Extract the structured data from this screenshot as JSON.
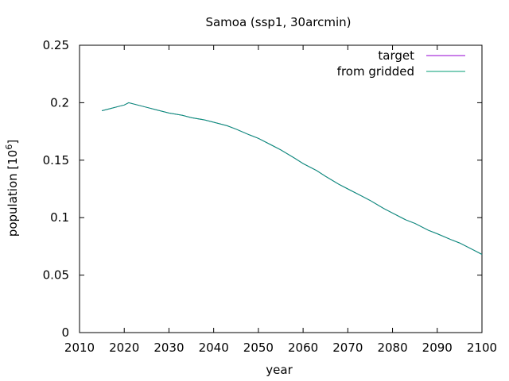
{
  "chart_data": {
    "type": "line",
    "title": "Samoa (ssp1, 30arcmin)",
    "xlabel": "year",
    "ylabel_main": "population [10",
    "ylabel_exp": "6",
    "ylabel_close": "]",
    "xlim": [
      2010,
      2100
    ],
    "ylim": [
      0,
      0.25
    ],
    "x_ticks": [
      2010,
      2020,
      2030,
      2040,
      2050,
      2060,
      2070,
      2080,
      2090,
      2100
    ],
    "y_ticks": [
      0,
      0.05,
      0.1,
      0.15,
      0.2,
      0.25
    ],
    "x_tick_labels": [
      "2010",
      "2020",
      "2030",
      "2040",
      "2050",
      "2060",
      "2070",
      "2080",
      "2090",
      "2100"
    ],
    "y_tick_labels": [
      "0",
      "0.05",
      "0.1",
      "0.15",
      "0.2",
      "0.25"
    ],
    "grid": false,
    "legend_position": "top-right",
    "x": [
      2015,
      2017,
      2019,
      2020,
      2021,
      2023,
      2025,
      2027,
      2030,
      2033,
      2035,
      2038,
      2040,
      2043,
      2045,
      2048,
      2050,
      2053,
      2055,
      2058,
      2060,
      2063,
      2065,
      2068,
      2070,
      2073,
      2075,
      2078,
      2080,
      2083,
      2085,
      2088,
      2090,
      2093,
      2095,
      2098,
      2100
    ],
    "series": [
      {
        "name": "target",
        "color": "#9400d3",
        "values": [
          0.193,
          0.195,
          0.197,
          0.198,
          0.2,
          0.198,
          0.196,
          0.194,
          0.191,
          0.189,
          0.187,
          0.185,
          0.183,
          0.18,
          0.177,
          0.172,
          0.169,
          0.163,
          0.159,
          0.152,
          0.147,
          0.141,
          0.136,
          0.129,
          0.125,
          0.119,
          0.115,
          0.108,
          0.104,
          0.098,
          0.095,
          0.089,
          0.086,
          0.081,
          0.078,
          0.072,
          0.068
        ]
      },
      {
        "name": "from gridded",
        "color": "#009e73",
        "values": [
          0.193,
          0.195,
          0.197,
          0.198,
          0.2,
          0.198,
          0.196,
          0.194,
          0.191,
          0.189,
          0.187,
          0.185,
          0.183,
          0.18,
          0.177,
          0.172,
          0.169,
          0.163,
          0.159,
          0.152,
          0.147,
          0.141,
          0.136,
          0.129,
          0.125,
          0.119,
          0.115,
          0.108,
          0.104,
          0.098,
          0.095,
          0.089,
          0.086,
          0.081,
          0.078,
          0.072,
          0.068
        ]
      }
    ]
  }
}
